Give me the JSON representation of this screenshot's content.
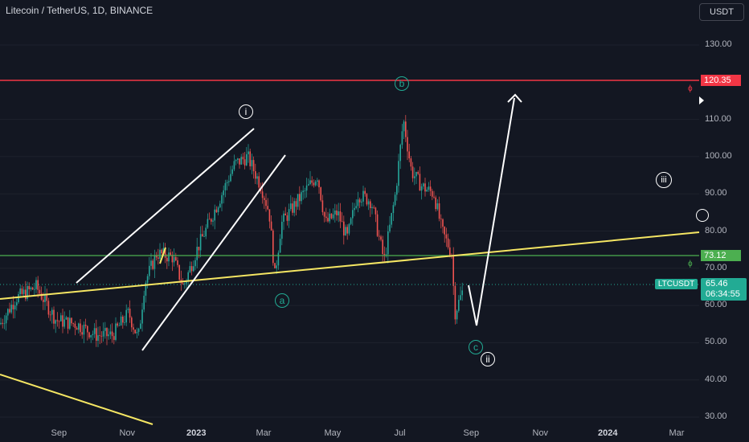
{
  "header": {
    "symbol_title": "Litecoin / TetherUS, 1D, BINANCE",
    "currency_button": "USDT"
  },
  "price_axis": {
    "ticks": [
      "130.00",
      "110.00",
      "100.00",
      "90.00",
      "80.00",
      "70.00",
      "60.00",
      "50.00",
      "40.00",
      "30.00"
    ],
    "tick_values": [
      130,
      110,
      100,
      90,
      80,
      70,
      60,
      50,
      40,
      30
    ]
  },
  "time_axis": {
    "ticks": [
      "Sep",
      "Nov",
      "2023",
      "Mar",
      "May",
      "Jul",
      "Sep",
      "Nov",
      "2024",
      "Mar"
    ]
  },
  "price_tags": {
    "resistance": {
      "label": "120.35",
      "value": 120.35,
      "color": "#f23645"
    },
    "support": {
      "label": "73.12",
      "value": 73.12,
      "color": "#4caf50"
    },
    "current": {
      "symbol": "LTCUSDT",
      "price": "65.46",
      "countdown": "06:34:55",
      "value": 65.46,
      "color": "#22ab94"
    }
  },
  "fib_markers": {
    "resistance": "ϕ",
    "support": "ϕ"
  },
  "wave_labels": {
    "i": "i",
    "iii": "iii",
    "ii": "ii",
    "a": "a",
    "b": "b",
    "c": "c"
  },
  "colors": {
    "background": "#131722",
    "up": "#26a69a",
    "down": "#ef5350",
    "trendline": "#f5e663",
    "drawing": "#ffffff"
  }
}
